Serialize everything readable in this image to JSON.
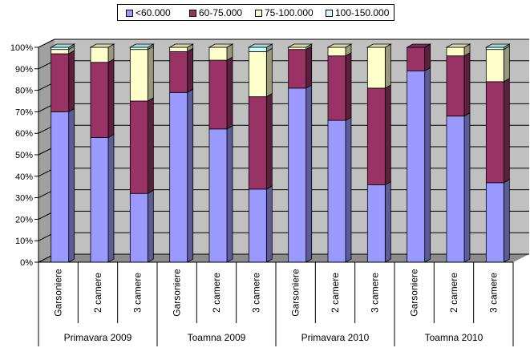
{
  "chart_data": {
    "type": "bar",
    "stacked": "percent",
    "ylim": [
      0,
      100
    ],
    "y_ticks": [
      "0%",
      "10%",
      "20%",
      "30%",
      "40%",
      "50%",
      "60%",
      "70%",
      "80%",
      "90%",
      "100%"
    ],
    "groups": [
      "Primavara 2009",
      "Toamna 2009",
      "Primavara 2010",
      "Toamna 2010"
    ],
    "categories": [
      "Garsoniere",
      "2 camere",
      "3 camere",
      "Garsoniere",
      "2 camere",
      "3 camere",
      "Garsoniere",
      "2 camere",
      "3 camere",
      "Garsoniere",
      "2 camere",
      "3 camere"
    ],
    "series": [
      {
        "name": "<60.000",
        "color": "#9999ff",
        "values": [
          70,
          58,
          32,
          79,
          62,
          34,
          81,
          66,
          36,
          89,
          68,
          37
        ]
      },
      {
        "name": "60-75.000",
        "color": "#993366",
        "values": [
          27,
          35,
          43,
          19,
          32,
          43,
          18,
          30,
          45,
          11,
          28,
          47
        ]
      },
      {
        "name": "75-100.000",
        "color": "#ffffcc",
        "values": [
          2,
          7,
          24,
          2,
          6,
          21,
          1,
          4,
          19,
          0,
          4,
          15
        ]
      },
      {
        "name": "100-150.000",
        "color": "#ccffff",
        "values": [
          1,
          0,
          1,
          0,
          0,
          2,
          0,
          0,
          0,
          0,
          0,
          1
        ]
      }
    ],
    "legend_position": "top",
    "grid": true
  }
}
